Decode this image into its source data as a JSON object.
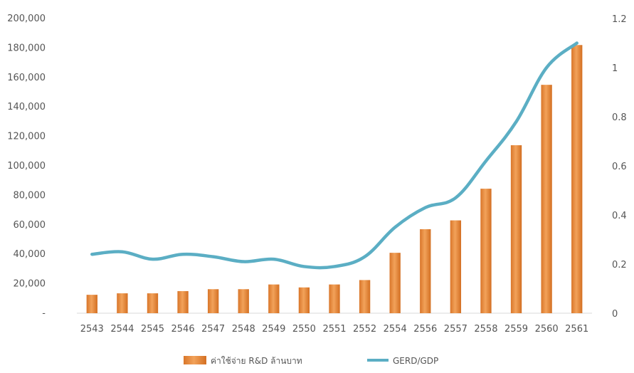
{
  "chart_data": {
    "type": "bar+line",
    "categories": [
      "2543",
      "2544",
      "2545",
      "2546",
      "2547",
      "2548",
      "2549",
      "2550",
      "2551",
      "2552",
      "2554",
      "2556",
      "2557",
      "2558",
      "2559",
      "2560",
      "2561"
    ],
    "series": [
      {
        "name": "ค่าใช้จ่าย R&D ล้านบาท",
        "type": "bar",
        "axis": "left",
        "color": "#E8893A",
        "values": [
          12500,
          13500,
          13500,
          15000,
          16300,
          16300,
          19500,
          17500,
          19500,
          22500,
          41000,
          57000,
          63000,
          84500,
          114000,
          155000,
          182000
        ]
      },
      {
        "name": "GERD/GDP",
        "type": "line",
        "axis": "right",
        "color": "#5BAEC4",
        "values": [
          0.24,
          0.25,
          0.22,
          0.24,
          0.23,
          0.21,
          0.22,
          0.19,
          0.19,
          0.23,
          0.35,
          0.43,
          0.47,
          0.62,
          0.78,
          1.0,
          1.1
        ]
      }
    ],
    "left_axis": {
      "ylim": [
        0,
        200000
      ],
      "ticks": [
        {
          "value": 0,
          "label": "-"
        },
        {
          "value": 20000,
          "label": "20,000"
        },
        {
          "value": 40000,
          "label": "40,000"
        },
        {
          "value": 60000,
          "label": "60,000"
        },
        {
          "value": 80000,
          "label": "80,000"
        },
        {
          "value": 100000,
          "label": "100,000"
        },
        {
          "value": 120000,
          "label": "120,000"
        },
        {
          "value": 140000,
          "label": "140,000"
        },
        {
          "value": 160000,
          "label": "160,000"
        },
        {
          "value": 180000,
          "label": "180,000"
        },
        {
          "value": 200000,
          "label": "200,000"
        }
      ]
    },
    "right_axis": {
      "ylim": [
        0,
        1.2
      ],
      "ticks": [
        {
          "value": 0,
          "label": "0"
        },
        {
          "value": 0.2,
          "label": "0.2"
        },
        {
          "value": 0.4,
          "label": "0.4"
        },
        {
          "value": 0.6,
          "label": "0.6"
        },
        {
          "value": 0.8,
          "label": "0.8"
        },
        {
          "value": 1.0,
          "label": "1"
        },
        {
          "value": 1.2,
          "label": "1.2"
        }
      ]
    },
    "legend": {
      "placement": "bottom-center",
      "items": [
        {
          "label": "ค่าใช้จ่าย R&D ล้านบาท",
          "kind": "bar",
          "color": "#E8893A"
        },
        {
          "label": "GERD/GDP",
          "kind": "line",
          "color": "#5BAEC4"
        }
      ]
    },
    "grid": false
  }
}
